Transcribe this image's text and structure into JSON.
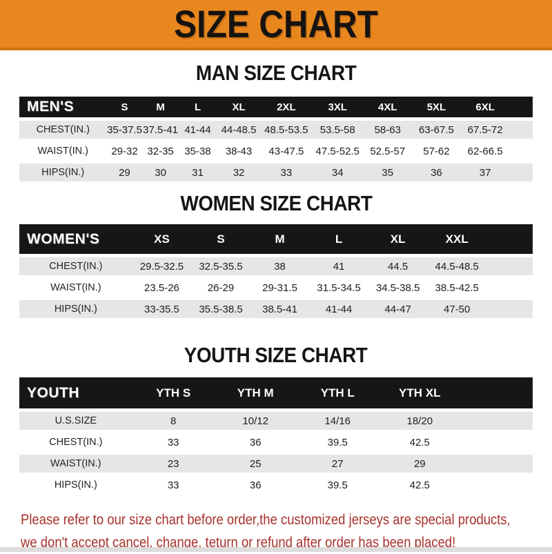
{
  "banner": {
    "title": "SIZE CHART"
  },
  "colors": {
    "banner_orange": "#e9871f",
    "banner_orange_dark": "#cf7712",
    "header_bar_black": "#161616",
    "row_gray": "#e6e6e6",
    "footer_red": "#a8322c"
  },
  "sections": [
    {
      "heading": "MAN SIZE CHART",
      "label": "MEN'S",
      "sizes": [
        "S",
        "M",
        "L",
        "XL",
        "2XL",
        "3XL",
        "4XL",
        "5XL",
        "6XL"
      ],
      "rows": [
        {
          "label": "CHEST(IN.)",
          "values": [
            "35-37.5",
            "37.5-41",
            "41-44",
            "44-48.5",
            "48.5-53.5",
            "53.5-58",
            "58-63",
            "63-67.5",
            "67.5-72"
          ]
        },
        {
          "label": "WAIST(IN.)",
          "values": [
            "29-32",
            "32-35",
            "35-38",
            "38-43",
            "43-47.5",
            "47.5-52.5",
            "52.5-57",
            "57-62",
            "62-66.5"
          ]
        },
        {
          "label": "HIPS(IN.)",
          "values": [
            "29",
            "30",
            "31",
            "32",
            "33",
            "34",
            "35",
            "36",
            "37"
          ]
        }
      ]
    },
    {
      "heading": "WOMEN SIZE CHART",
      "label": "WOMEN'S",
      "sizes": [
        "XS",
        "S",
        "M",
        "L",
        "XL",
        "XXL"
      ],
      "rows": [
        {
          "label": "CHEST(IN.)",
          "values": [
            "29.5-32.5",
            "32.5-35.5",
            "38",
            "41",
            "44.5",
            "44.5-48.5"
          ]
        },
        {
          "label": "WAIST(IN.)",
          "values": [
            "23.5-26",
            "26-29",
            "29-31.5",
            "31.5-34.5",
            "34.5-38.5",
            "38.5-42.5"
          ]
        },
        {
          "label": "HIPS(IN.)",
          "values": [
            "33-35.5",
            "35.5-38.5",
            "38.5-41",
            "41-44",
            "44-47",
            "47-50"
          ]
        }
      ]
    },
    {
      "heading": "YOUTH SIZE CHART",
      "label": "YOUTH",
      "sizes": [
        "YTH S",
        "YTH M",
        "YTH L",
        "YTH XL"
      ],
      "rows": [
        {
          "label": "U.S.SIZE",
          "values": [
            "8",
            "10/12",
            "14/16",
            "18/20"
          ]
        },
        {
          "label": "CHEST(IN.)",
          "values": [
            "33",
            "36",
            "39.5",
            "42.5"
          ]
        },
        {
          "label": "WAIST(IN.)",
          "values": [
            "23",
            "25",
            "27",
            "29"
          ]
        },
        {
          "label": "HIPS(IN.)",
          "values": [
            "33",
            "36",
            "39.5",
            "42.5"
          ]
        }
      ]
    }
  ],
  "footer": {
    "line1": "Please refer to our size chart before order,the customized jerseys are special products,",
    "line2": "we don't accept cancel, change, teturn or refund after order has been placed!"
  }
}
